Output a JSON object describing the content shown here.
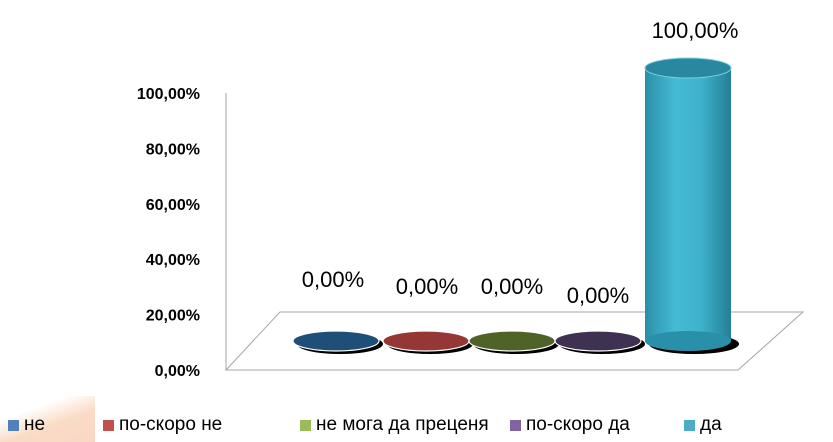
{
  "chart_data": {
    "type": "bar",
    "style": "3d-cylinder",
    "categories": [
      "не",
      "по-скоро не",
      "не мога да преценя",
      "по-скоро да",
      "да"
    ],
    "values": [
      0,
      0,
      0,
      0,
      100
    ],
    "data_labels": [
      "0,00%",
      "0,00%",
      "0,00%",
      "0,00%",
      "100,00%"
    ],
    "colors": [
      "#1f4e79",
      "#953735",
      "#4f6228",
      "#3f3151",
      "#31a9c4"
    ],
    "legend_colors": [
      "#4f81bd",
      "#c0504d",
      "#9bbb59",
      "#8064a2",
      "#4bacc6"
    ],
    "ylim": [
      0,
      100
    ],
    "y_ticks": [
      "0,00%",
      "20,00%",
      "40,00%",
      "60,00%",
      "80,00%",
      "100,00%"
    ],
    "title": "",
    "xlabel": "",
    "ylabel": "",
    "grid": false,
    "legend_position": "bottom"
  }
}
